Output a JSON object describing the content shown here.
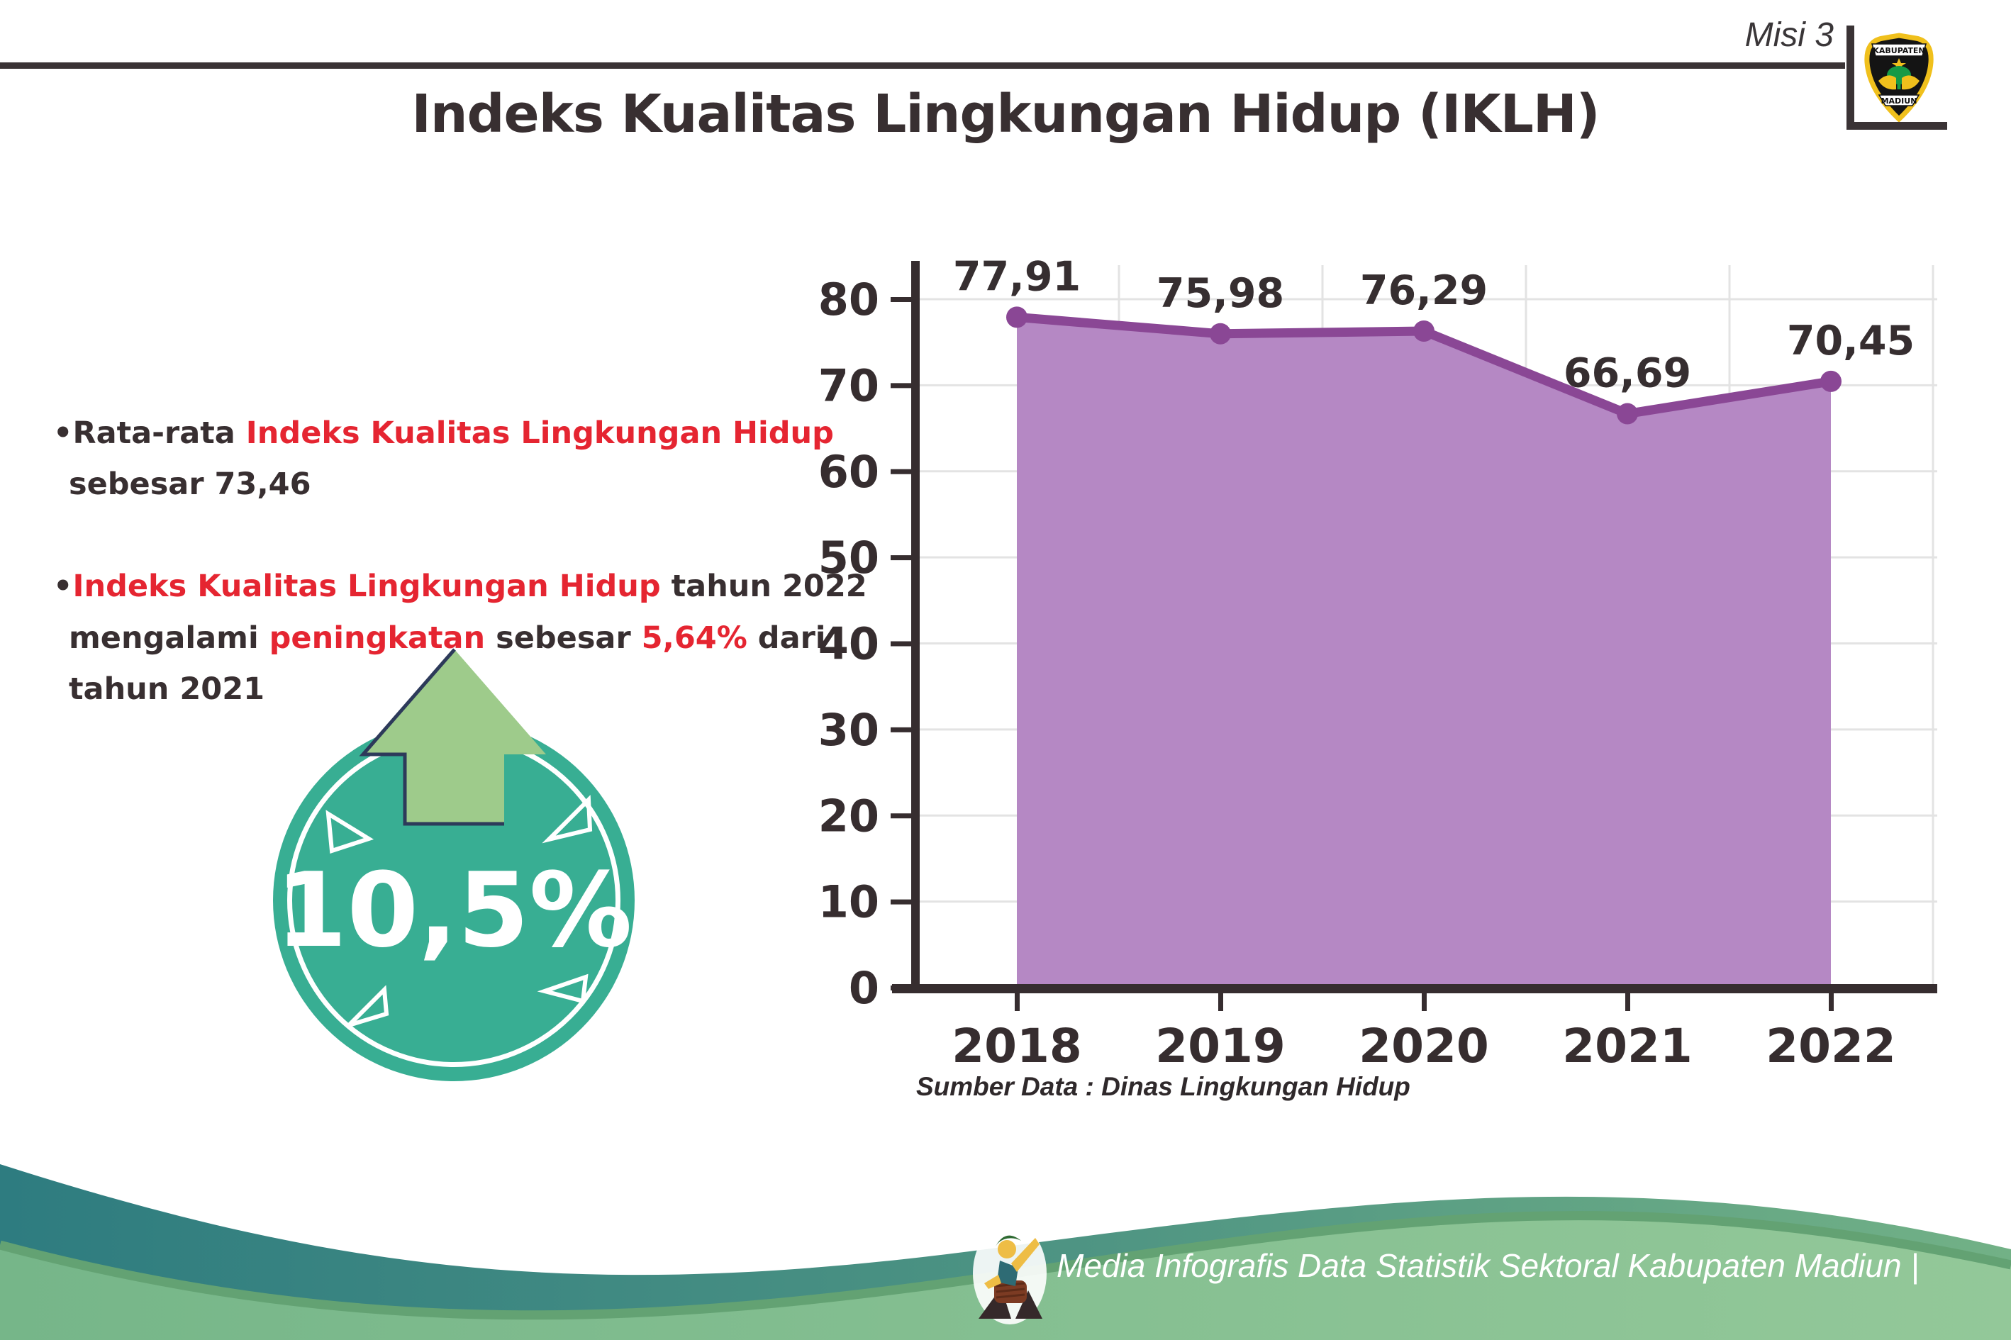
{
  "header": {
    "misi_label": "Misi 3",
    "title": "Indeks Kualitas Lingkungan Hidup (IKLH)",
    "logo": {
      "top_banner": "KABUPATEN",
      "bottom_banner": "MADIUN"
    }
  },
  "bullets": [
    {
      "lines": [
        [
          {
            "t": "•Rata-rata ",
            "c": "dark"
          },
          {
            "t": "Indeks Kualitas Lingkungan Hidup",
            "c": "red"
          }
        ],
        [
          {
            "t": "sebesar 73,46",
            "c": "dark"
          }
        ]
      ]
    },
    {
      "lines": [
        [
          {
            "t": "•",
            "c": "dark"
          },
          {
            "t": "Indeks Kualitas Lingkungan Hidup",
            "c": "red"
          },
          {
            "t": " tahun 2022",
            "c": "dark"
          }
        ],
        [
          {
            "t": "mengalami ",
            "c": "dark"
          },
          {
            "t": "peningkatan",
            "c": "red"
          },
          {
            "t": " sebesar ",
            "c": "dark"
          },
          {
            "t": "5,64%",
            "c": "red"
          },
          {
            "t": " dari",
            "c": "dark"
          }
        ],
        [
          {
            "t": "tahun 2021",
            "c": "dark"
          }
        ]
      ]
    }
  ],
  "badge": {
    "value": "10,5%",
    "circle_color": "#38ae93",
    "arrow_color": "#9ecb8b",
    "arrow_outline_color": "#2d3a5a"
  },
  "chart_data": {
    "type": "area",
    "categories": [
      "2018",
      "2019",
      "2020",
      "2021",
      "2022"
    ],
    "values": [
      77.91,
      75.98,
      76.29,
      66.69,
      70.45
    ],
    "point_labels": [
      "77,91",
      "75,98",
      "76,29",
      "66,69",
      "70,45"
    ],
    "title": "",
    "xlabel": "",
    "ylabel": "",
    "ylim": [
      0,
      80
    ],
    "yticks": [
      0,
      10,
      20,
      30,
      40,
      50,
      60,
      70,
      80
    ],
    "grid": true,
    "legend": false,
    "fill_color": "#b588c4",
    "line_color": "#8a4795",
    "grid_color": "#e3e3e3",
    "axis_color": "#362d2f",
    "source": "Sumber Data : Dinas Lingkungan Hidup"
  },
  "footer": {
    "caption": "Media Infografis Data Statistik Sektoral Kabupaten Madiun |",
    "teal_color": "#2e7c80",
    "green_color": "#7cba8b",
    "edge_color": "#63a273"
  }
}
